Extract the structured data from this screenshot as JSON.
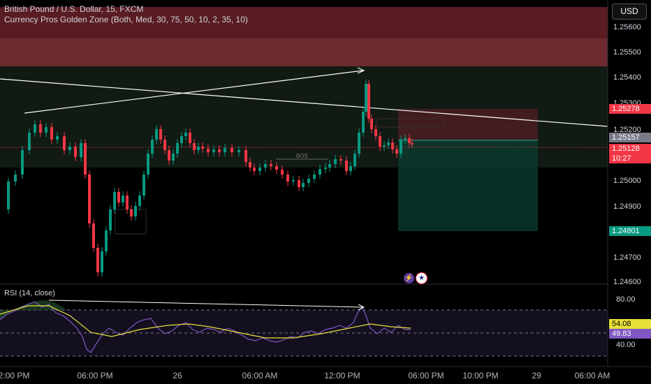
{
  "header": {
    "symbol": "British Pound / U.S. Dollar, 15, FXCM",
    "indicator": "Currency Pros Golden Zone (Both, Med, 30, 75, 50, 10, 2, 35, 10)",
    "currency_button": "USD"
  },
  "rsi": {
    "label": "RSI (14, close)",
    "value": "54.08",
    "ma_value": "49.83",
    "levels": [
      "80.00",
      "40.00"
    ]
  },
  "price_axis": {
    "ticks": [
      "1.25600",
      "1.25500",
      "1.25400",
      "1.25300",
      "1.25200",
      "1.25000",
      "1.24900",
      "1.24700",
      "1.24600"
    ],
    "labels": {
      "target": "1.25278",
      "last": "1.25157",
      "current": "1.25128",
      "countdown": "10:27",
      "stop": "1.24801"
    }
  },
  "time_axis": {
    "ticks": [
      "2:00 PM",
      "06:00 PM",
      "26",
      "06:00 AM",
      "12:00 PM",
      "06:00 PM",
      "10:00 PM",
      "29",
      "06:00 AM"
    ]
  },
  "annotations": {
    "bos": "BOS"
  },
  "colors": {
    "up": "#089981",
    "down": "#f23645",
    "rsi_line": "#7e57c2",
    "rsi_ma": "#e8e03a",
    "red_zone": "#5a1a1f",
    "green_zone": "#0f1a12"
  },
  "icons": [
    "lightning-icon",
    "us-flag-icon"
  ]
}
